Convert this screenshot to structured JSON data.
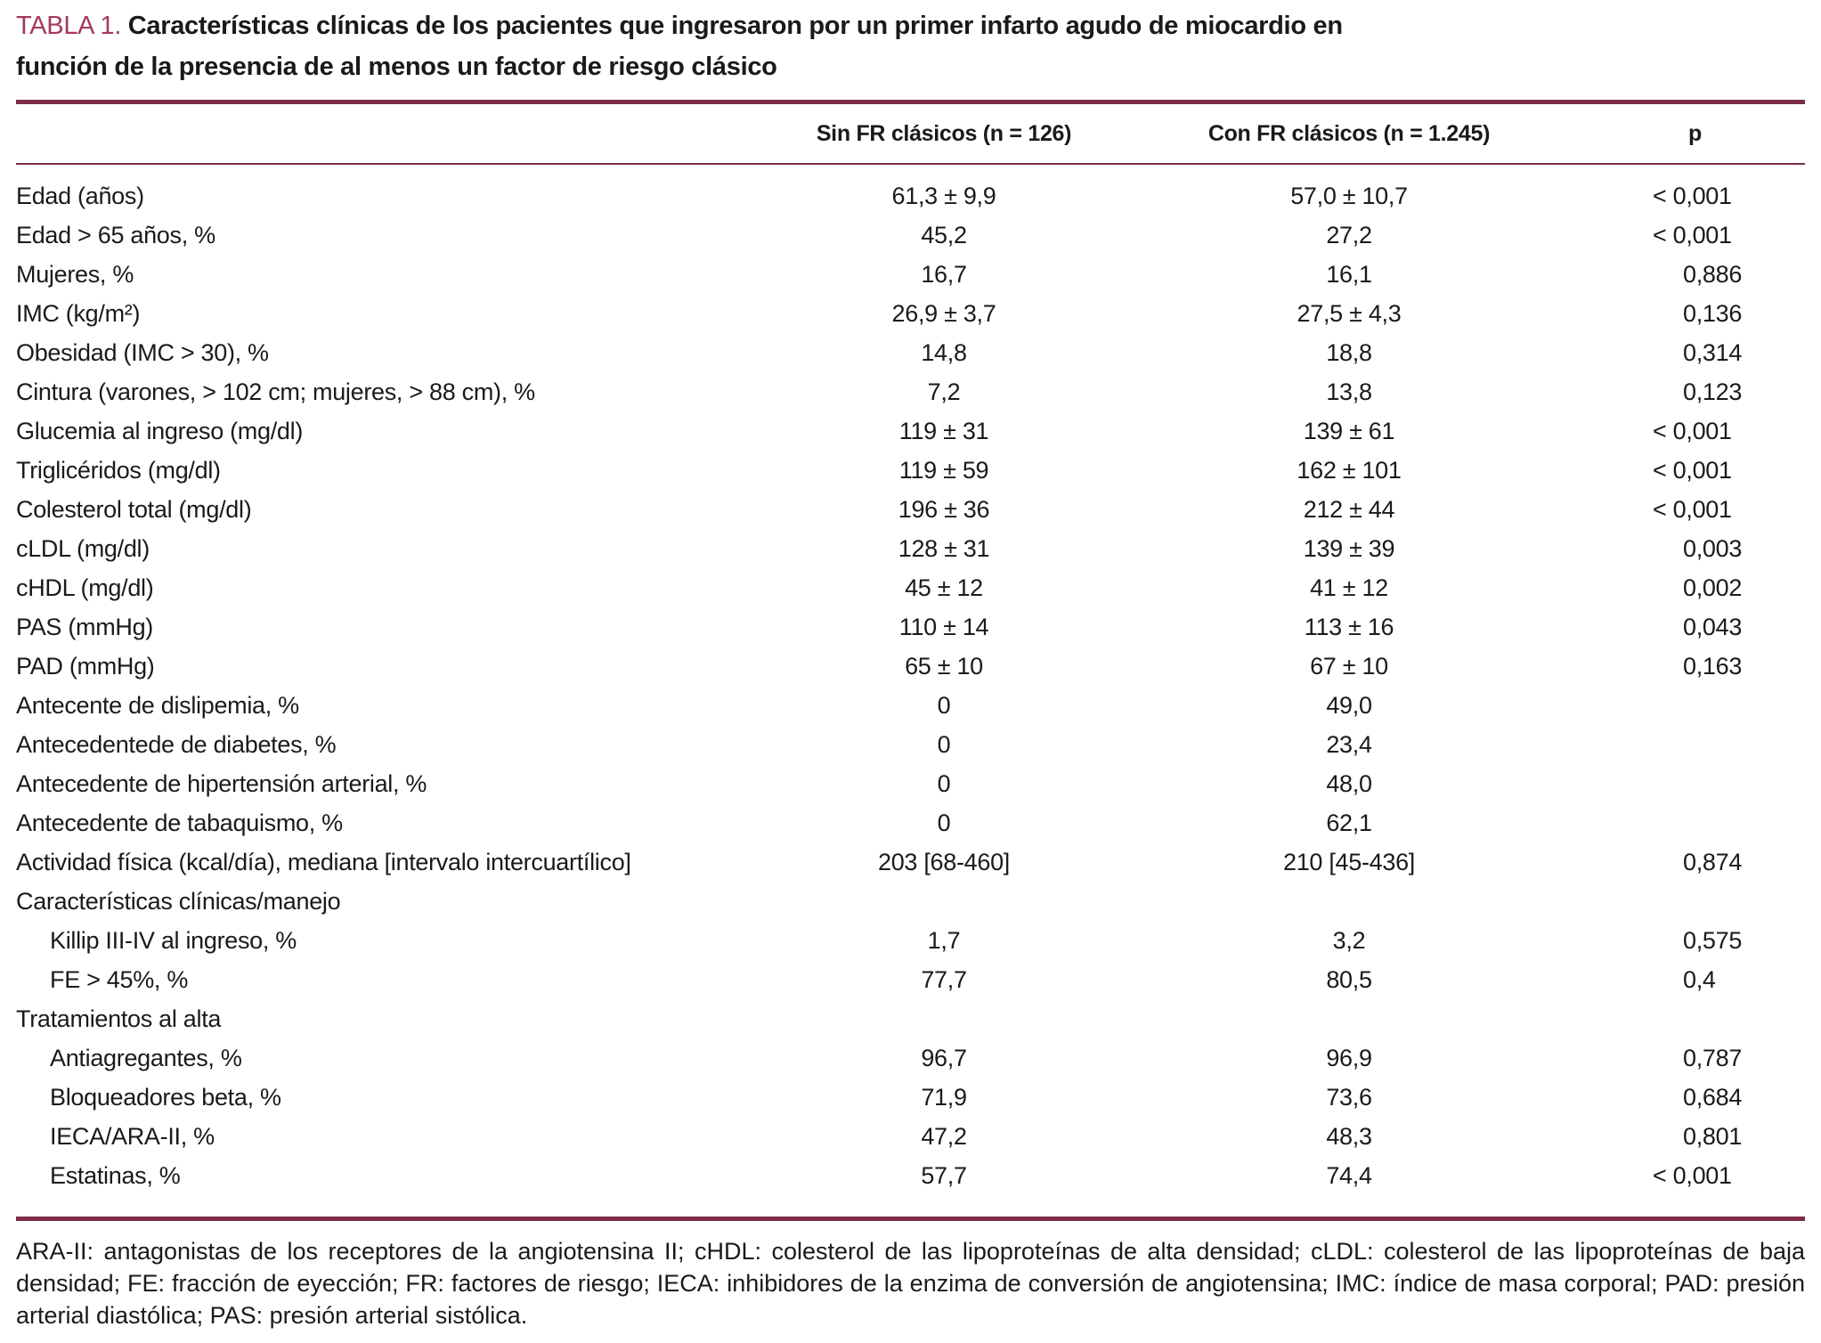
{
  "colors": {
    "accent": "#a43a5a",
    "rule": "#7c2d45",
    "text": "#1a1a1a"
  },
  "title": {
    "label": "TABLA 1.",
    "line1": "Características clínicas de los pacientes que ingresaron por un primer infarto agudo de miocardio en",
    "line2": "función de la presencia de al menos un factor de riesgo clásico"
  },
  "table": {
    "columns": [
      "",
      "Sin FR clásicos (n = 126)",
      "Con FR clásicos (n = 1.245)",
      "p"
    ],
    "rows": [
      {
        "label": "Edad (años)",
        "sin": "61,3 ± 9,9",
        "con": "57,0 ± 10,7",
        "p": "< 0,001",
        "indent": false,
        "section": false
      },
      {
        "label": "Edad > 65 años, %",
        "sin": "45,2",
        "con": "27,2",
        "p": "< 0,001",
        "indent": false,
        "section": false
      },
      {
        "label": "Mujeres, %",
        "sin": "16,7",
        "con": "16,1",
        "p": "0,886",
        "indent": false,
        "section": false
      },
      {
        "label": "IMC (kg/m²)",
        "sin": "26,9 ± 3,7",
        "con": "27,5 ± 4,3",
        "p": "0,136",
        "indent": false,
        "section": false
      },
      {
        "label": "Obesidad (IMC > 30), %",
        "sin": "14,8",
        "con": "18,8",
        "p": "0,314",
        "indent": false,
        "section": false
      },
      {
        "label": "Cintura (varones, > 102 cm; mujeres, > 88 cm), %",
        "sin": "7,2",
        "con": "13,8",
        "p": "0,123",
        "indent": false,
        "section": false
      },
      {
        "label": "Glucemia al ingreso (mg/dl)",
        "sin": "119 ± 31",
        "con": "139 ± 61",
        "p": "< 0,001",
        "indent": false,
        "section": false
      },
      {
        "label": "Triglicéridos (mg/dl)",
        "sin": "119 ± 59",
        "con": "162 ± 101",
        "p": "< 0,001",
        "indent": false,
        "section": false
      },
      {
        "label": "Colesterol total (mg/dl)",
        "sin": "196 ± 36",
        "con": "212 ± 44",
        "p": "< 0,001",
        "indent": false,
        "section": false
      },
      {
        "label": "cLDL (mg/dl)",
        "sin": "128 ± 31",
        "con": "139 ± 39",
        "p": "0,003",
        "indent": false,
        "section": false
      },
      {
        "label": "cHDL (mg/dl)",
        "sin": "45 ± 12",
        "con": "41 ± 12",
        "p": "0,002",
        "indent": false,
        "section": false
      },
      {
        "label": "PAS (mmHg)",
        "sin": "110 ± 14",
        "con": "113 ± 16",
        "p": "0,043",
        "indent": false,
        "section": false
      },
      {
        "label": "PAD (mmHg)",
        "sin": "65 ± 10",
        "con": "67 ± 10",
        "p": "0,163",
        "indent": false,
        "section": false
      },
      {
        "label": "Antecente de dislipemia, %",
        "sin": "0",
        "con": "49,0",
        "p": "",
        "indent": false,
        "section": false
      },
      {
        "label": "Antecedentede de diabetes, %",
        "sin": "0",
        "con": "23,4",
        "p": "",
        "indent": false,
        "section": false
      },
      {
        "label": "Antecedente de hipertensión arterial, %",
        "sin": "0",
        "con": "48,0",
        "p": "",
        "indent": false,
        "section": false
      },
      {
        "label": "Antecedente de tabaquismo, %",
        "sin": "0",
        "con": "62,1",
        "p": "",
        "indent": false,
        "section": false
      },
      {
        "label": "Actividad física (kcal/día), mediana [intervalo intercuartílico]",
        "sin": "203 [68-460]",
        "con": "210 [45-436]",
        "p": "0,874",
        "indent": false,
        "section": false
      },
      {
        "label": "Características clínicas/manejo",
        "sin": "",
        "con": "",
        "p": "",
        "indent": false,
        "section": true
      },
      {
        "label": "Killip III-IV al ingreso, %",
        "sin": "1,7",
        "con": "3,2",
        "p": "0,575",
        "indent": true,
        "section": false
      },
      {
        "label": "FE > 45%, %",
        "sin": "77,7",
        "con": "80,5",
        "p": "0,4",
        "indent": true,
        "section": false
      },
      {
        "label": "Tratamientos al alta",
        "sin": "",
        "con": "",
        "p": "",
        "indent": false,
        "section": true
      },
      {
        "label": "Antiagregantes, %",
        "sin": "96,7",
        "con": "96,9",
        "p": "0,787",
        "indent": true,
        "section": false
      },
      {
        "label": "Bloqueadores beta, %",
        "sin": "71,9",
        "con": "73,6",
        "p": "0,684",
        "indent": true,
        "section": false
      },
      {
        "label": "IECA/ARA-II, %",
        "sin": "47,2",
        "con": "48,3",
        "p": "0,801",
        "indent": true,
        "section": false
      },
      {
        "label": "Estatinas, %",
        "sin": "57,7",
        "con": "74,4",
        "p": "< 0,001",
        "indent": true,
        "section": false
      }
    ]
  },
  "footnote": "ARA-II: antagonistas de los receptores de la angiotensina II; cHDL: colesterol de las lipoproteínas de alta densidad; cLDL: colesterol de las lipoproteínas de baja densidad; FE: fracción de eyección; FR: factores de riesgo; IECA: inhibidores de la enzima de conversión de angiotensina; IMC: índice de masa corporal; PAD: presión arterial diastólica; PAS: presión arterial sistólica."
}
